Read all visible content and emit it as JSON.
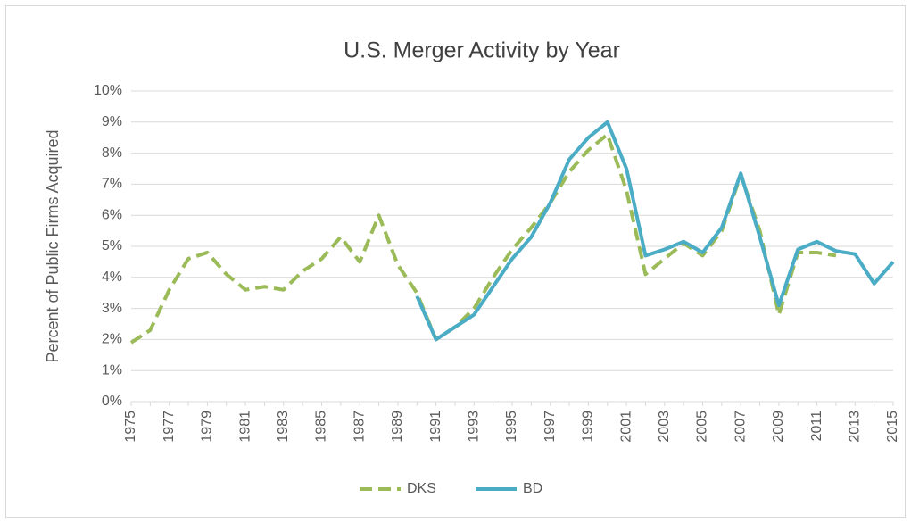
{
  "chart_data": {
    "type": "line",
    "title": "U.S. Merger Activity by Year",
    "y_label": "Percent of Public Firms Acquired",
    "categories": [
      "1975",
      null,
      "1977",
      null,
      "1979",
      null,
      "1981",
      null,
      "1983",
      null,
      "1985",
      null,
      "1987",
      null,
      "1989",
      null,
      "1991",
      null,
      "1993",
      null,
      "1995",
      null,
      "1997",
      null,
      "1999",
      null,
      "2001",
      null,
      "2003",
      null,
      "2005",
      null,
      "2007",
      null,
      "2009",
      null,
      "2011",
      null,
      "2013",
      null,
      "2015"
    ],
    "series": [
      {
        "name": "DKS",
        "color": "#9bbb59",
        "dash": true,
        "values": [
          1.9,
          2.3,
          3.6,
          4.6,
          4.8,
          4.1,
          3.6,
          3.7,
          3.6,
          4.2,
          4.6,
          5.3,
          4.5,
          6.0,
          4.4,
          3.5,
          2.0,
          2.4,
          3.0,
          4.0,
          4.9,
          5.6,
          6.4,
          7.4,
          8.1,
          8.6,
          6.8,
          4.1,
          4.6,
          5.1,
          4.7,
          5.5,
          7.3,
          5.5,
          2.8,
          4.8,
          4.8,
          4.7,
          null,
          null,
          null
        ]
      },
      {
        "name": "BD",
        "color": "#4bacc6",
        "dash": false,
        "values": [
          null,
          null,
          null,
          null,
          null,
          null,
          null,
          null,
          null,
          null,
          null,
          null,
          null,
          null,
          null,
          3.4,
          2.0,
          2.4,
          2.8,
          3.7,
          4.6,
          5.3,
          6.4,
          7.8,
          8.5,
          9.0,
          7.5,
          4.7,
          4.9,
          5.15,
          4.8,
          5.6,
          7.35,
          5.3,
          3.1,
          4.9,
          5.15,
          4.85,
          4.75,
          3.8,
          4.5
        ]
      }
    ],
    "ylim": [
      0,
      10
    ],
    "yticks": [
      {
        "value": 0,
        "label": "0%"
      },
      {
        "value": 1,
        "label": "1%"
      },
      {
        "value": 2,
        "label": "2%"
      },
      {
        "value": 3,
        "label": "3%"
      },
      {
        "value": 4,
        "label": "4%"
      },
      {
        "value": 5,
        "label": "5%"
      },
      {
        "value": 6,
        "label": "6%"
      },
      {
        "value": 7,
        "label": "7%"
      },
      {
        "value": 8,
        "label": "8%"
      },
      {
        "value": 9,
        "label": "9%"
      },
      {
        "value": 10,
        "label": "10%"
      }
    ],
    "grid": true,
    "legend": "bottom"
  }
}
